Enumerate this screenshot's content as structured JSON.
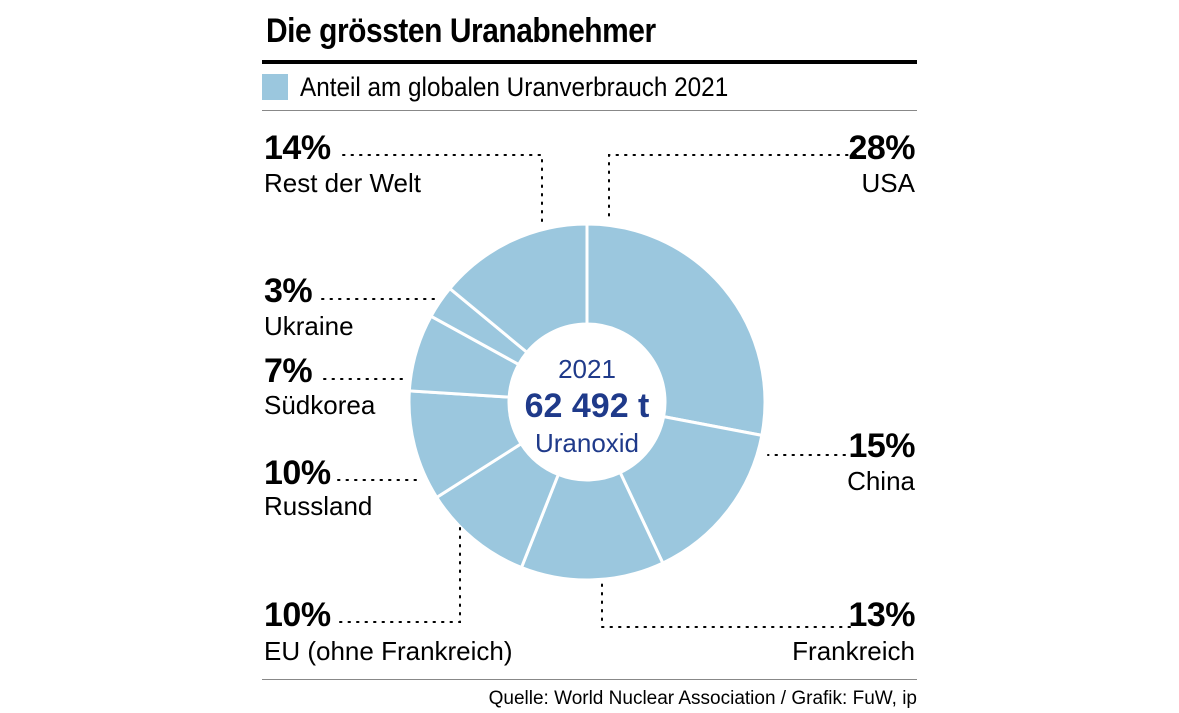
{
  "title": "Die grössten Uranabnehmer",
  "legend": {
    "label": "Anteil am globalen Uranverbrauch 2021",
    "color": "#9bc7de"
  },
  "source": "Quelle: World Nuclear Association / Grafik: FuW, ip",
  "chart_data": {
    "type": "pie",
    "variant": "donut",
    "series_name": "Anteil am globalen Uranverbrauch 2021",
    "categories": [
      "USA",
      "China",
      "Frankreich",
      "EU (ohne Frankreich)",
      "Russland",
      "Südkorea",
      "Ukraine",
      "Rest der Welt"
    ],
    "values": [
      28,
      15,
      13,
      10,
      10,
      7,
      3,
      14
    ],
    "value_labels": [
      "28%",
      "15%",
      "13%",
      "10%",
      "10%",
      "7%",
      "3%",
      "14%"
    ],
    "center": {
      "year": "2021",
      "total": "62 492 t",
      "unit": "Uranoxid"
    },
    "colors": {
      "slice": "#9bc7de",
      "separator": "#ffffff",
      "center_text": "#1f3a8a",
      "leader": "#000000"
    }
  }
}
